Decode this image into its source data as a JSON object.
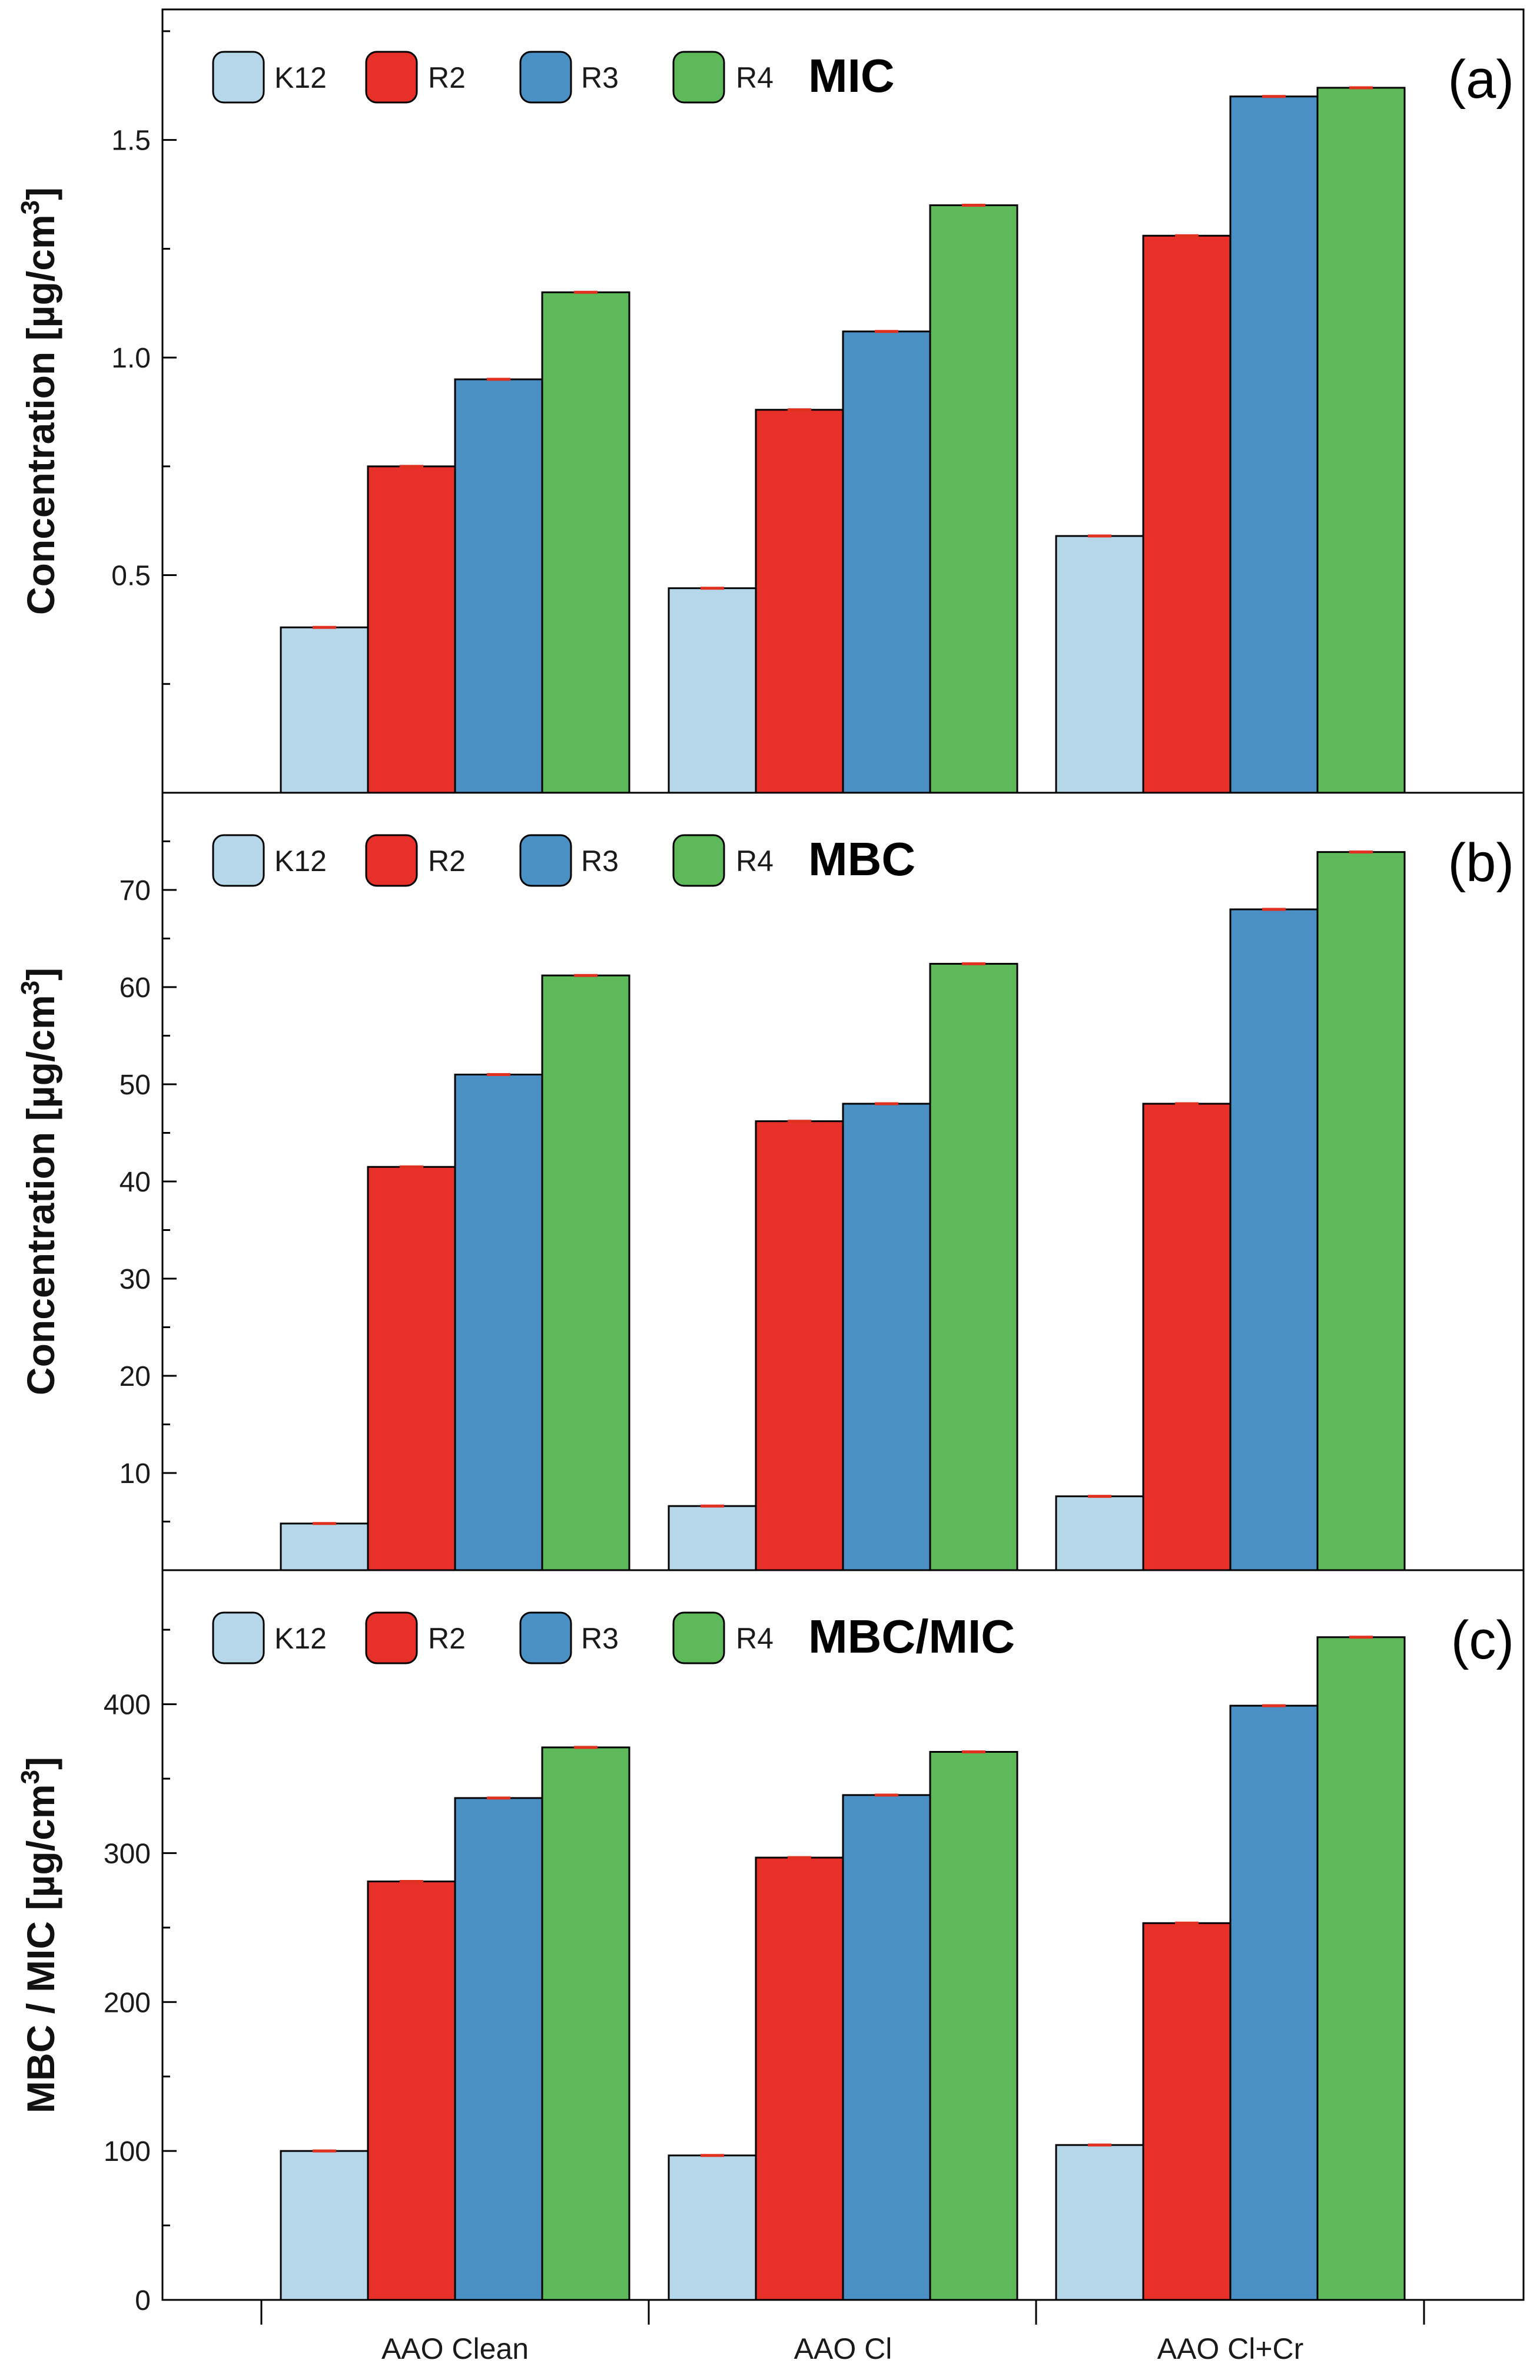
{
  "colors": {
    "K12": "#b5d7e9",
    "R2": "#e8302a",
    "R3": "#4a90c5",
    "R4": "#5db95a",
    "error": "#e03020",
    "axis": "#000000"
  },
  "chart_data": [
    {
      "type": "bar",
      "panel": "(a)",
      "title": "MIC",
      "ylabel": "Concentration [µg/cm³]",
      "ylabel_main": "Concentration [µg/cm",
      "ylabel_sup": "3",
      "ylabel_end": "]",
      "ylim": [
        0,
        1.8
      ],
      "yticks": [
        0.5,
        1.0,
        1.5
      ],
      "ytick_labels": [
        "0.5",
        "1.0",
        "1.5"
      ],
      "categories": [
        "AAO Clean",
        "AAO Cl",
        "AAO Cl+Cr"
      ],
      "legend": [
        "K12",
        "R2",
        "R3",
        "R4"
      ],
      "series": [
        {
          "name": "K12",
          "values": [
            0.38,
            0.47,
            0.59
          ]
        },
        {
          "name": "R2",
          "values": [
            0.75,
            0.88,
            1.28
          ]
        },
        {
          "name": "R3",
          "values": [
            0.95,
            1.06,
            1.6
          ]
        },
        {
          "name": "R4",
          "values": [
            1.15,
            1.35,
            1.62
          ]
        }
      ]
    },
    {
      "type": "bar",
      "panel": "(b)",
      "title": "MBC",
      "ylabel": "Concentration [µg/cm³]",
      "ylabel_main": "Concentration [µg/cm",
      "ylabel_sup": "3",
      "ylabel_end": "]",
      "ylim": [
        0,
        80
      ],
      "yticks": [
        10,
        20,
        30,
        40,
        50,
        60,
        70
      ],
      "ytick_labels": [
        "10",
        "20",
        "30",
        "40",
        "50",
        "60",
        "70"
      ],
      "categories": [
        "AAO Clean",
        "AAO Cl",
        "AAO Cl+Cr"
      ],
      "legend": [
        "K12",
        "R2",
        "R3",
        "R4"
      ],
      "series": [
        {
          "name": "K12",
          "values": [
            4.8,
            6.6,
            7.6
          ]
        },
        {
          "name": "R2",
          "values": [
            41.5,
            46.2,
            48.0
          ]
        },
        {
          "name": "R3",
          "values": [
            51.0,
            48.0,
            68.0
          ]
        },
        {
          "name": "R4",
          "values": [
            61.2,
            62.4,
            73.9
          ]
        }
      ]
    },
    {
      "type": "bar",
      "panel": "(c)",
      "title": "MBC/MIC",
      "ylabel": "MBC / MIC [µg/cm³]",
      "ylabel_main": "MBC / MIC [µg/cm",
      "ylabel_sup": "3",
      "ylabel_end": "]",
      "ylim": [
        0,
        490
      ],
      "yticks": [
        0,
        100,
        200,
        300,
        400
      ],
      "ytick_labels": [
        "0",
        "100",
        "200",
        "300",
        "400"
      ],
      "categories": [
        "AAO Clean",
        "AAO Cl",
        "AAO Cl+Cr"
      ],
      "legend": [
        "K12",
        "R2",
        "R3",
        "R4"
      ],
      "series": [
        {
          "name": "K12",
          "values": [
            100,
            97,
            104
          ]
        },
        {
          "name": "R2",
          "values": [
            281,
            297,
            253
          ]
        },
        {
          "name": "R3",
          "values": [
            337,
            339,
            399
          ]
        },
        {
          "name": "R4",
          "values": [
            371,
            368,
            445
          ]
        }
      ]
    }
  ]
}
